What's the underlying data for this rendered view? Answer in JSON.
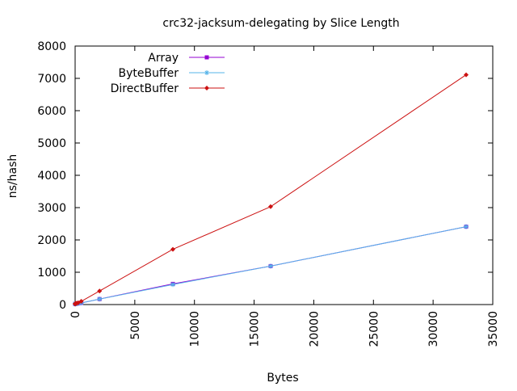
{
  "chart_data": {
    "type": "line",
    "title": "crc32-jacksum-delegating by Slice Length",
    "xlabel": "Bytes",
    "ylabel": "ns/hash",
    "xlim": [
      0,
      35000
    ],
    "ylim": [
      0,
      8000
    ],
    "x_ticks": [
      0,
      5000,
      10000,
      15000,
      20000,
      25000,
      30000,
      35000
    ],
    "y_ticks": [
      0,
      1000,
      2000,
      3000,
      4000,
      5000,
      6000,
      7000,
      8000
    ],
    "x_tick_labels": [
      "0",
      "5000",
      "10000",
      "15000",
      "20000",
      "25000",
      "30000",
      "35000"
    ],
    "y_tick_labels": [
      "0",
      "1000",
      "2000",
      "3000",
      "4000",
      "5000",
      "6000",
      "7000",
      "8000"
    ],
    "grid": false,
    "legend_position": "top-left",
    "series": [
      {
        "name": "Array",
        "color": "#9400d3",
        "marker": "square",
        "x": [
          1,
          2,
          4,
          8,
          16,
          32,
          64,
          128,
          256,
          512,
          2048,
          8192,
          16384,
          32768
        ],
        "y": [
          20,
          20,
          20,
          22,
          22,
          24,
          26,
          28,
          35,
          50,
          170,
          640,
          1190,
          2410
        ]
      },
      {
        "name": "ByteBuffer",
        "color": "#56b4e9",
        "marker": "star",
        "x": [
          1,
          2,
          4,
          8,
          16,
          32,
          64,
          128,
          256,
          512,
          2048,
          8192,
          16384,
          32768
        ],
        "y": [
          20,
          20,
          20,
          22,
          22,
          24,
          26,
          28,
          35,
          50,
          170,
          620,
          1190,
          2410
        ]
      },
      {
        "name": "DirectBuffer",
        "color": "#cc1111",
        "marker": "diamond",
        "x": [
          1,
          2,
          4,
          8,
          16,
          32,
          64,
          128,
          256,
          512,
          2048,
          8192,
          16384,
          32768
        ],
        "y": [
          20,
          20,
          22,
          24,
          26,
          30,
          34,
          42,
          55,
          100,
          420,
          1710,
          3030,
          7110
        ]
      }
    ]
  }
}
